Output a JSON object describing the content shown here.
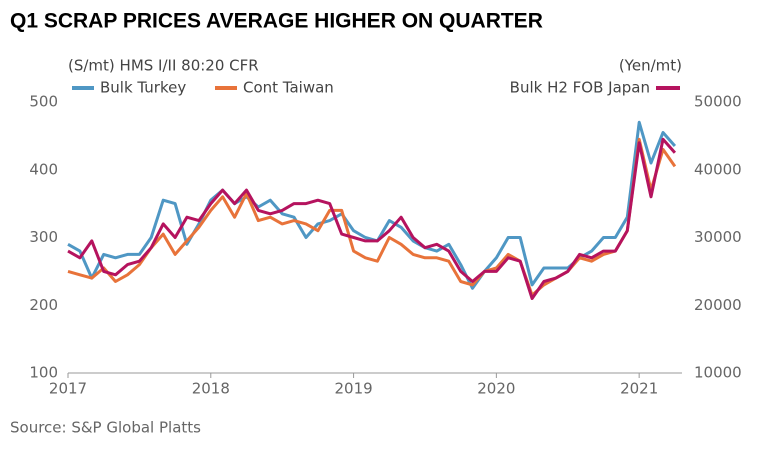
{
  "chart_data": {
    "type": "line",
    "title": "Q1 SCRAP PRICES AVERAGE HIGHER ON QUARTER",
    "y_label": "(S/mt) HMS I/II 80:20 CFR",
    "y2_label": "(Yen/mt)",
    "source": "Source: S&P Global Platts",
    "x": [
      2017,
      2017.083,
      2017.167,
      2017.25,
      2017.333,
      2017.417,
      2017.5,
      2017.583,
      2017.667,
      2017.75,
      2017.833,
      2017.917,
      2018,
      2018.083,
      2018.167,
      2018.25,
      2018.333,
      2018.417,
      2018.5,
      2018.583,
      2018.667,
      2018.75,
      2018.833,
      2018.917,
      2019,
      2019.083,
      2019.167,
      2019.25,
      2019.333,
      2019.417,
      2019.5,
      2019.583,
      2019.667,
      2019.75,
      2019.833,
      2019.917,
      2020,
      2020.083,
      2020.167,
      2020.25,
      2020.333,
      2020.417,
      2020.5,
      2020.583,
      2020.667,
      2020.75,
      2020.833,
      2020.917,
      2021,
      2021.083,
      2021.167,
      2021.25
    ],
    "xlim": [
      2017,
      2021.3
    ],
    "xticks": [
      2017,
      2018,
      2019,
      2020,
      2021
    ],
    "ylim": [
      100,
      500
    ],
    "yticks": [
      100,
      200,
      300,
      400,
      500
    ],
    "y2lim": [
      10000,
      50000
    ],
    "y2ticks": [
      10000,
      20000,
      30000,
      40000,
      50000
    ],
    "series": [
      {
        "name": "Bulk Turkey",
        "color": "#4f97c4",
        "values": [
          290,
          280,
          240,
          275,
          270,
          275,
          275,
          300,
          355,
          350,
          290,
          320,
          355,
          370,
          350,
          360,
          345,
          355,
          335,
          330,
          300,
          320,
          325,
          335,
          310,
          300,
          295,
          325,
          315,
          295,
          285,
          280,
          290,
          260,
          225,
          250,
          270,
          300,
          300,
          230,
          255,
          255,
          255,
          270,
          280,
          300,
          300,
          330,
          470,
          410,
          455,
          435
        ]
      },
      {
        "name": "Cont Taiwan",
        "color": "#e8733a",
        "values": [
          250,
          245,
          240,
          255,
          235,
          245,
          260,
          285,
          305,
          275,
          295,
          315,
          340,
          360,
          330,
          365,
          325,
          330,
          320,
          325,
          320,
          310,
          340,
          340,
          280,
          270,
          265,
          300,
          290,
          275,
          270,
          270,
          265,
          235,
          230,
          250,
          255,
          275,
          265,
          215,
          230,
          240,
          250,
          270,
          265,
          275,
          280,
          310,
          445,
          370,
          430,
          405
        ]
      },
      {
        "name": "Bulk H2 FOB Japan",
        "color": "#b5135e",
        "axis": "y2",
        "values": [
          28000,
          27000,
          29500,
          25000,
          24500,
          26000,
          26500,
          28500,
          32000,
          30000,
          33000,
          32500,
          35000,
          37000,
          35000,
          37000,
          34000,
          33500,
          34000,
          35000,
          35000,
          35500,
          35000,
          30500,
          30000,
          29500,
          29500,
          31000,
          33000,
          30000,
          28500,
          29000,
          28000,
          25000,
          23500,
          25000,
          25000,
          27000,
          26500,
          21000,
          23500,
          24000,
          25000,
          27500,
          27000,
          28000,
          28000,
          31000,
          44000,
          36000,
          44500,
          42500
        ]
      }
    ]
  }
}
